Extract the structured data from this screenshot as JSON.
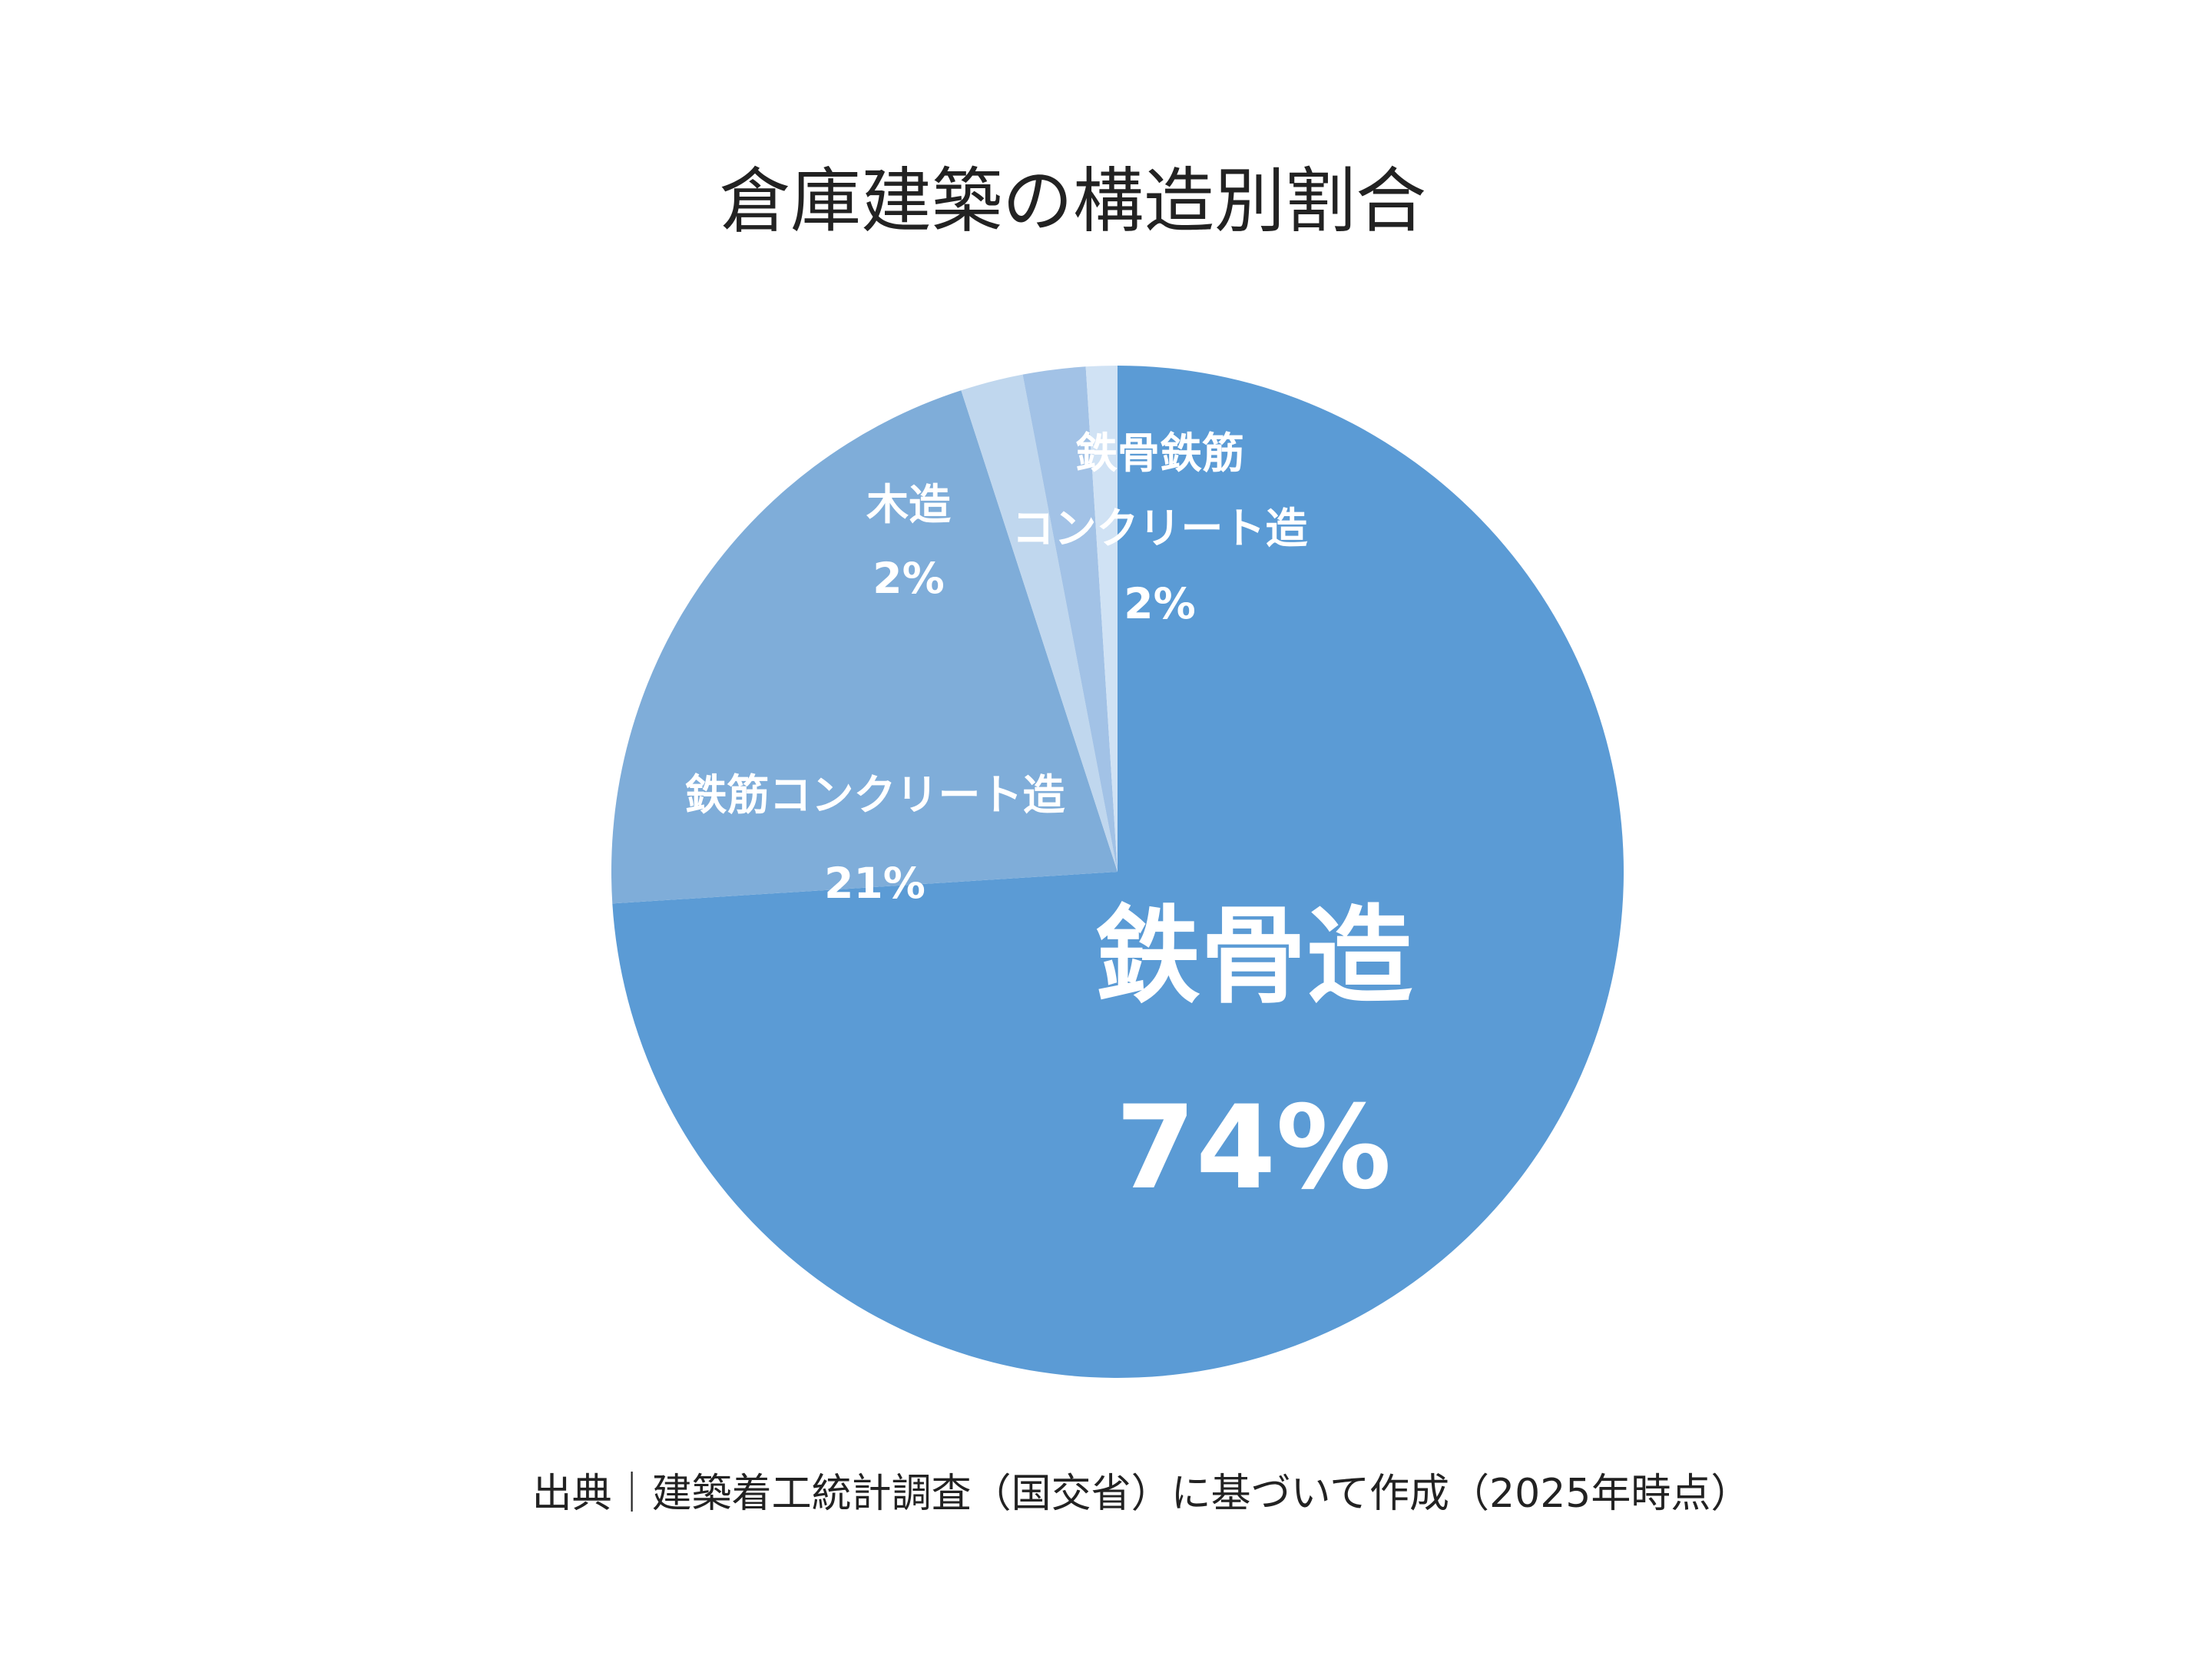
{
  "chart_data": {
    "type": "pie",
    "title": "倉庫建築の構造別割合",
    "categories": [
      "鉄骨造",
      "鉄筋コンクリート造",
      "木造",
      "鉄骨鉄筋\nコンクリート造",
      null
    ],
    "values": [
      74,
      21,
      2,
      2,
      1
    ],
    "value_labels": [
      "74%",
      "21%",
      "2%",
      "2%",
      null
    ],
    "colors": [
      "#5b9bd5",
      "#7fadd9",
      "#c0d7ee",
      "#a2c2e6",
      "#d0e2f4"
    ],
    "source": "出典｜建築着工統計調査（国交省）に基づいて作成（2025年時点）"
  }
}
